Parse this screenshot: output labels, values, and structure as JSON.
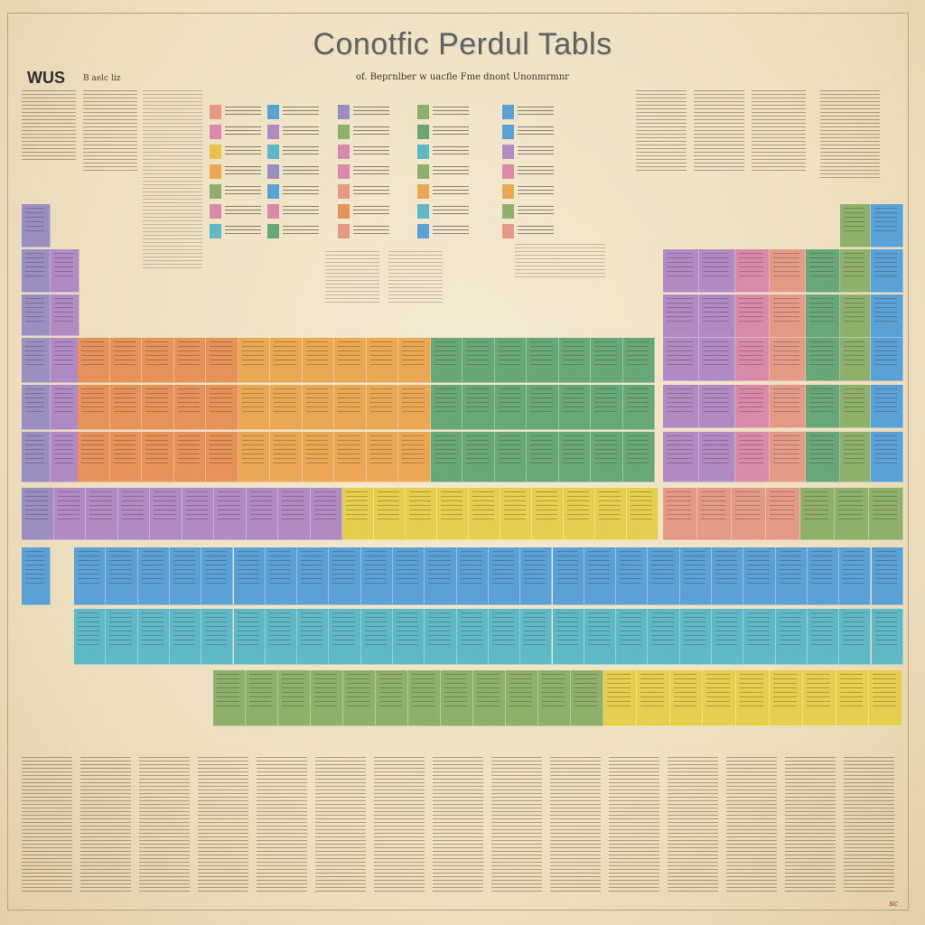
{
  "poster": {
    "title": "Conotfic Perdul Tabls",
    "subtitle": "of. Beprnlber w uacfle Fme dnont Unonmrmnr",
    "corner_label": "WUS",
    "corner_sub": "B aelc liz",
    "signature": "sc"
  },
  "palette": {
    "purple": "#9a8fc0",
    "violet": "#b08ac2",
    "orange": "#e6935a",
    "amber": "#eaa854",
    "gold": "#e8c250",
    "yellow": "#e6cf4e",
    "green": "#68a878",
    "olive": "#8fb06a",
    "blue": "#5aa2d6",
    "teal": "#5fb8c6",
    "pink": "#d88aa8",
    "rose": "#e59a86"
  }
}
